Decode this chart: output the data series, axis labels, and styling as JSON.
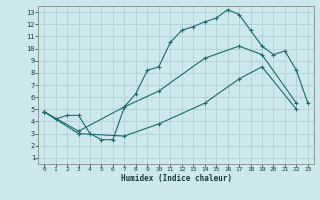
{
  "xlabel": "Humidex (Indice chaleur)",
  "bg_color": "#cce8ec",
  "grid_color": "#aaccd0",
  "line_color": "#1a6b6b",
  "xlim": [
    0,
    23
  ],
  "ylim": [
    1,
    13
  ],
  "xticks": [
    0,
    1,
    2,
    3,
    4,
    5,
    6,
    7,
    8,
    9,
    10,
    11,
    12,
    13,
    14,
    15,
    16,
    17,
    18,
    19,
    20,
    21,
    22,
    23
  ],
  "yticks": [
    1,
    2,
    3,
    4,
    5,
    6,
    7,
    8,
    9,
    10,
    11,
    12,
    13
  ],
  "line1_x": [
    0,
    1,
    2,
    3,
    4,
    5,
    6,
    7,
    8,
    9,
    10,
    11,
    12,
    13,
    14,
    15,
    16,
    17,
    18,
    19,
    20,
    21,
    22,
    23
  ],
  "line1_y": [
    4.8,
    4.2,
    4.5,
    4.5,
    3.0,
    2.5,
    2.5,
    5.2,
    6.3,
    8.2,
    8.5,
    10.5,
    11.5,
    11.8,
    12.2,
    12.5,
    13.2,
    12.8,
    11.5,
    10.2,
    9.5,
    9.8,
    8.2,
    5.5
  ],
  "line2_x": [
    0,
    3,
    7,
    10,
    14,
    17,
    19,
    22
  ],
  "line2_y": [
    4.8,
    3.2,
    5.2,
    6.5,
    9.2,
    10.2,
    9.5,
    5.5
  ],
  "line3_x": [
    0,
    3,
    7,
    10,
    14,
    17,
    19,
    22
  ],
  "line3_y": [
    4.8,
    3.0,
    2.8,
    3.8,
    5.5,
    7.5,
    8.5,
    5.0
  ]
}
